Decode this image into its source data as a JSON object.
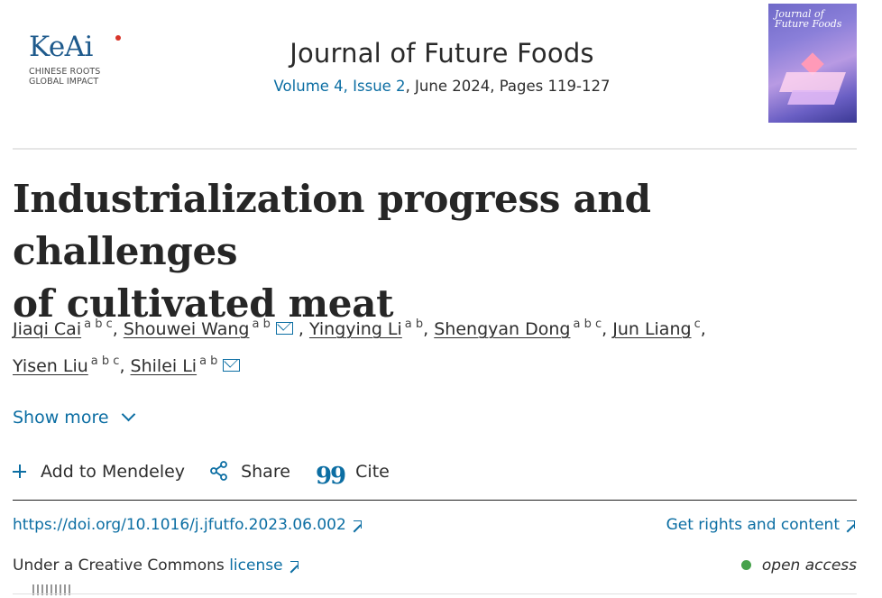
{
  "header": {
    "publisher": {
      "name": "KeAi",
      "tagline_line1": "CHINESE ROOTS",
      "tagline_line2": "GLOBAL IMPACT"
    },
    "journal_title": "Journal of Future Foods",
    "volume_issue": "Volume 4, Issue 2",
    "date_pages": ", June 2024, Pages 119-127",
    "cover": {
      "title_line1": "Journal of",
      "title_line2": "Future Foods"
    }
  },
  "article": {
    "title_line1": "Industrialization progress and challenges",
    "title_line2": "of cultivated meat",
    "authors": [
      {
        "name": "Jiaqi Cai",
        "aff": "a b c",
        "sep": ", ",
        "email": false
      },
      {
        "name": "Shouwei Wang",
        "aff": "a b",
        "sep": " , ",
        "email": true
      },
      {
        "name": "Yingying Li",
        "aff": "a b",
        "sep": ", ",
        "email": false
      },
      {
        "name": "Shengyan Dong",
        "aff": "a b c",
        "sep": ", ",
        "email": false
      },
      {
        "name": "Jun Liang",
        "aff": "c",
        "sep": ",",
        "email": false
      },
      {
        "name": "Yisen Liu",
        "aff": "a b c",
        "sep": ", ",
        "email": false
      },
      {
        "name": "Shilei Li",
        "aff": "a b",
        "sep": "",
        "email": true
      }
    ]
  },
  "controls": {
    "show_more": "Show more",
    "add_to_mendeley": "Add to Mendeley",
    "share": "Share",
    "cite": "Cite",
    "cite_glyph": "99"
  },
  "links": {
    "doi": "https://doi.org/10.1016/j.jfutfo.2023.06.002",
    "rights": "Get rights and content"
  },
  "license": {
    "prefix": "Under a Creative Commons ",
    "link": "license",
    "access": "open access"
  },
  "icons": {
    "author_email": "envelope-icon",
    "show_more": "chevron-down-icon",
    "mendeley": "plus-icon",
    "share": "share-icon",
    "cite": "quote-icon",
    "external": "external-link-icon",
    "open_access": "open-access-dot-icon"
  },
  "colors": {
    "link": "#0c6ea3",
    "open_access": "#46a24b",
    "publisher_brand": "#1e5a8c",
    "publisher_dot": "#d8352a"
  }
}
